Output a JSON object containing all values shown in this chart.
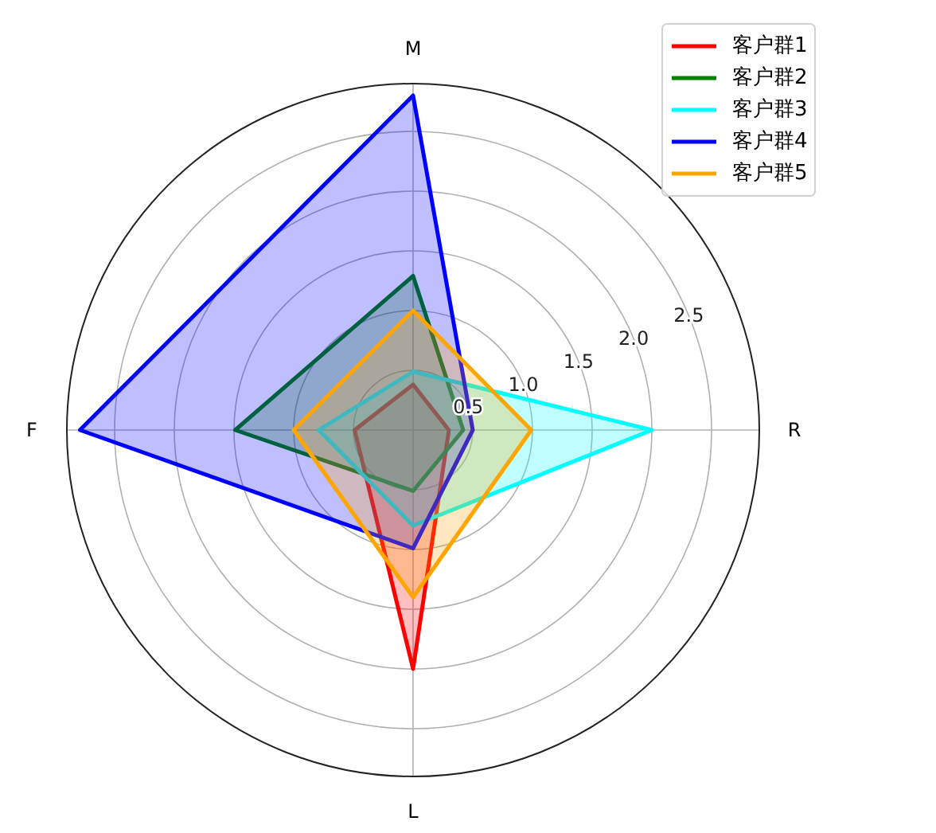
{
  "chart_data": {
    "type": "radar",
    "categories": [
      "M",
      "R",
      "L",
      "F"
    ],
    "series": [
      {
        "name": "客户群1",
        "color": "#ff0000",
        "values": [
          0.38,
          0.3,
          2.0,
          0.49
        ]
      },
      {
        "name": "客户群2",
        "color": "#008000",
        "values": [
          1.29,
          0.42,
          0.51,
          1.49
        ]
      },
      {
        "name": "客户群3",
        "color": "#00ffff",
        "values": [
          0.49,
          2.0,
          0.8,
          0.79
        ]
      },
      {
        "name": "客户群4",
        "color": "#0000ff",
        "values": [
          2.8,
          0.5,
          0.99,
          2.79
        ]
      },
      {
        "name": "客户群5",
        "color": "#ffa500",
        "values": [
          1.0,
          0.99,
          1.4,
          1.0
        ]
      }
    ],
    "ylim": [
      0,
      2.9
    ],
    "yticks": [
      0.5,
      {
        "value": 1,
        "label": "1.0"
      },
      1.5,
      {
        "value": 2,
        "label": "2.0"
      },
      2.5
    ],
    "grid": true,
    "legend": "top right"
  }
}
